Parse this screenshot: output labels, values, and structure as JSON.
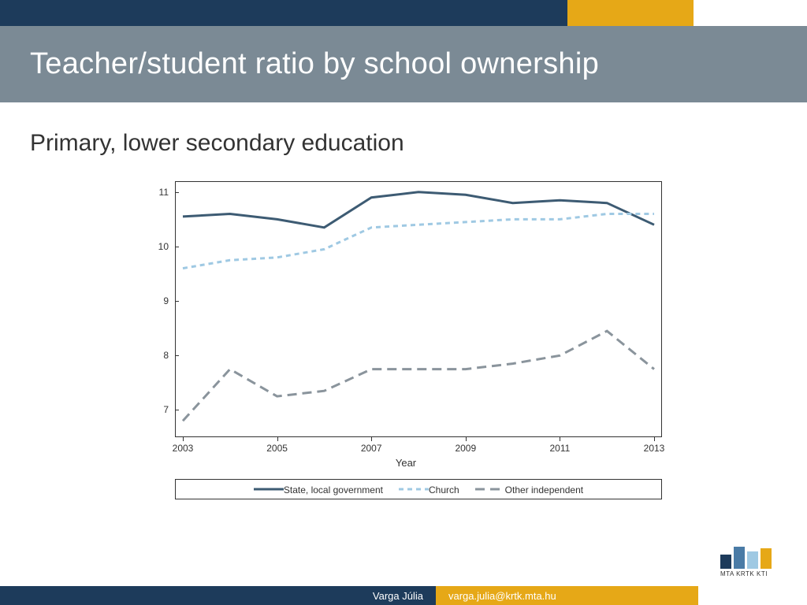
{
  "header": {
    "title": "Teacher/student ratio by school ownership"
  },
  "subtitle": "Primary, lower secondary education",
  "chart": {
    "type": "line",
    "background_color": "#ffffff",
    "border_color": "#333333",
    "xlabel": "Year",
    "ylim": [
      6.5,
      11.2
    ],
    "yticks": [
      7,
      8,
      9,
      10,
      11
    ],
    "x_categories": [
      2003,
      2004,
      2005,
      2006,
      2007,
      2008,
      2009,
      2010,
      2011,
      2012,
      2013
    ],
    "xticks_shown": [
      2003,
      2005,
      2007,
      2009,
      2011,
      2013
    ],
    "series": [
      {
        "name": "State, local government",
        "color": "#3d5b73",
        "dash": "none",
        "line_width": 3,
        "values": [
          10.55,
          10.6,
          10.5,
          10.35,
          10.9,
          11.0,
          10.95,
          10.8,
          10.85,
          10.8,
          10.4
        ]
      },
      {
        "name": "Church",
        "color": "#9fc9e3",
        "dash": "6,5",
        "line_width": 3,
        "values": [
          9.6,
          9.75,
          9.8,
          9.95,
          10.35,
          10.4,
          10.45,
          10.5,
          10.5,
          10.6,
          10.6
        ]
      },
      {
        "name": "Other independent",
        "color": "#8a949c",
        "dash": "12,7",
        "line_width": 3,
        "values": [
          6.8,
          7.75,
          7.25,
          7.35,
          7.75,
          7.75,
          7.75,
          7.85,
          8.0,
          8.45,
          7.75
        ]
      }
    ],
    "label_fontsize": 12
  },
  "footer": {
    "author": "Varga Júlia",
    "email": "varga.julia@krtk.mta.hu"
  },
  "logo": {
    "text": "MTA KRTK KTI",
    "bar_colors": [
      "#1d3b5b",
      "#4a7ba6",
      "#9fc9e3",
      "#e6a817"
    ]
  },
  "accent_colors": {
    "navy": "#1d3b5b",
    "gold": "#e6a817",
    "title_bar": "#7b8a95"
  }
}
